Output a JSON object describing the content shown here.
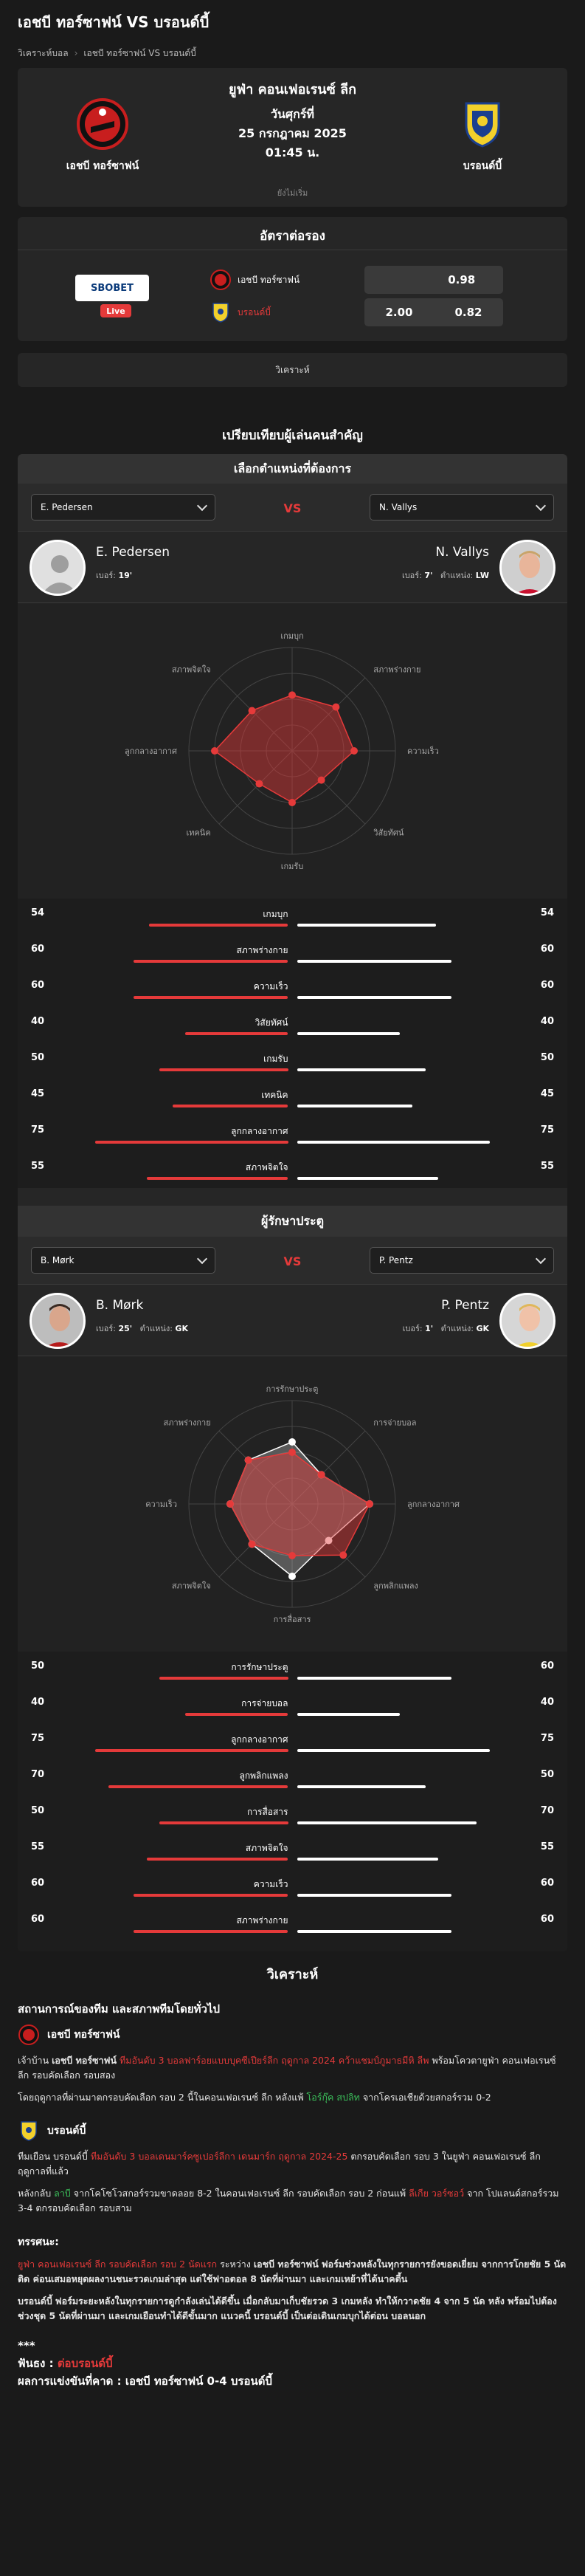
{
  "page": {
    "title": "เอชบี ทอร์ซาฟน์ VS บรอนด์บี้",
    "breadcrumb": [
      "วิเคราะห์บอล",
      "เอชบี ทอร์ซาฟน์ VS บรอนด์บี้"
    ]
  },
  "match": {
    "league": "ยูฟ่า คอนเฟอเรนซ์ ลีก",
    "day": "วันศุกร์ที่",
    "date": "25 กรกฎาคม 2025",
    "time": "01:45 น.",
    "status": "ยังไม่เริ่ม",
    "home": "เอชบี ทอร์ซาฟน์",
    "away": "บรอนด์บี้"
  },
  "odds": {
    "title": "อัตราต่อรอง",
    "bookmaker": "SBOBET",
    "live": "Live",
    "rows": [
      {
        "team": "เอชบี ทอร์ซาฟน์",
        "hdp": "",
        "price": "0.98",
        "team_color": "#ffffff"
      },
      {
        "team": "บรอนด์บี้",
        "hdp": "2.00",
        "price": "0.82",
        "team_color": "#e53a3a"
      }
    ]
  },
  "tab": {
    "label": "วิเคราะห์"
  },
  "compare": {
    "section_title": "เปรียบเทียบผู้เล่นคนสำคัญ",
    "head": "เลือกตำแหน่งที่ต้องการ",
    "vs": "VS",
    "left": {
      "name": "E. Pedersen",
      "age_label": "เบอร์:",
      "age": "19",
      "pos_label": "",
      "pos": ""
    },
    "right": {
      "name": "N. Vallys",
      "age_label": "เบอร์:",
      "age": "7",
      "pos_label": "ตำแหน่ง:",
      "pos": "LW"
    },
    "stats": [
      {
        "label": "เกมบุก",
        "l": 54,
        "r": 54
      },
      {
        "label": "สภาพร่างกาย",
        "l": 60,
        "r": 60
      },
      {
        "label": "ความเร็ว",
        "l": 60,
        "r": 60
      },
      {
        "label": "วิสัยทัศน์",
        "l": 40,
        "r": 40
      },
      {
        "label": "เกมรับ",
        "l": 50,
        "r": 50
      },
      {
        "label": "เทคนิค",
        "l": 45,
        "r": 45
      },
      {
        "label": "ลูกกลางอากาศ",
        "l": 75,
        "r": 75
      },
      {
        "label": "สภาพจิตใจ",
        "l": 55,
        "r": 55
      }
    ],
    "radar_axes": [
      "เกมบุก",
      "สภาพร่างกาย",
      "ความเร็ว",
      "วิสัยทัศน์",
      "เกมรับ",
      "เทคนิค",
      "ลูกกลางอากาศ",
      "สภาพจิตใจ"
    ]
  },
  "gk": {
    "title": "ผู้รักษาประตู",
    "vs": "VS",
    "left": {
      "name": "B. Mørk",
      "num_label": "เบอร์:",
      "num": "25",
      "pos_label": "ตำแหน่ง:",
      "pos": "GK"
    },
    "right": {
      "name": "P. Pentz",
      "num_label": "เบอร์:",
      "num": "1",
      "pos_label": "ตำแหน่ง:",
      "pos": "GK"
    },
    "stats": [
      {
        "label": "การรักษาประตู",
        "l": 50,
        "r": 60
      },
      {
        "label": "การจ่ายบอล",
        "l": 40,
        "r": 40
      },
      {
        "label": "ลูกกลางอากาศ",
        "l": 75,
        "r": 75
      },
      {
        "label": "ลูกพลิกแพลง",
        "l": 70,
        "r": 50
      },
      {
        "label": "การสื่อสาร",
        "l": 50,
        "r": 70
      },
      {
        "label": "สภาพจิตใจ",
        "l": 55,
        "r": 55
      },
      {
        "label": "ความเร็ว",
        "l": 60,
        "r": 60
      },
      {
        "label": "สภาพร่างกาย",
        "l": 60,
        "r": 60
      }
    ],
    "radar_axes": [
      "การรักษาประตู",
      "การจ่ายบอล",
      "ลูกกลางอากาศ",
      "ลูกพลิกแพลง",
      "การสื่อสาร",
      "สภาพจิตใจ",
      "ความเร็ว",
      "สภาพร่างกาย"
    ]
  },
  "analysis": {
    "header": "วิเคราะห์",
    "h3": "สถานการณ์ของทีม และสภาพทีมโดยทั่วไป",
    "home_team": "เอชบี ทอร์ซาฟน์",
    "home_p1_a": "เจ้าบ้าน",
    "home_p1_b": "เอชบี ทอร์ซาฟน์",
    "home_p1_c": "ทีมอันดับ 3 บอลฟาร์อยแบบบุคซีเปียร์ลีก ฤดูกาล 2024 คว้าแชมป์ภูมาธมีหิ ลีพ",
    "home_p1_d": "พร้อมโควตายูฟ่า คอนเฟอเรนซ์ ลีก รอบคัดเลือก รอบสอง",
    "home_p2": "โดยฤดูกาลที่ผ่านมาตกรอบคัดเลือก รอบ 2 นี้ในคอนเฟอเรนซ์ ลีก หลังแพ้",
    "home_p2_g": "โอร์กุ๊ค สปลิท",
    "home_p2_e": "จากโครเอเชียด้วยสกอร์รวม 0-2",
    "away_team": "บรอนด์บี้",
    "away_p1_a": "ทีมเยือน บรอนด์บี้",
    "away_p1_b": "ทีมอันดับ 3 บอลเดนมาร์คซูเปอร์ลีกา เดนมาร์ก ฤดูกาล 2024-25",
    "away_p1_c": "ตกรอบคัดเลือก รอบ 3 ในยูฟ่า คอนเฟอเรนซ์ ลีก ฤดูกาลที่แล้ว",
    "away_p2_a": "หลังกลับ",
    "away_p2_g": "ลาบี",
    "away_p2_b": "จากโคโซโวสกอร์รวมขาดลอย 8-2 ในคอนเฟอเรนซ์ ลีก รอบคัดเลือก รอบ 2 ก่อนแพ้",
    "away_p2_r": "ลีเกีย วอร์ซอว์",
    "away_p2_c": "จาก",
    "away_p2_d": "โปแลนด์สกอร์รวม 3-4 ตกรอบคัดเลือก รอบสาม",
    "trend_h": "ทรรศนะ:",
    "trend_p1_r": "ยูฟ่า คอนเฟอเรนซ์ ลีก รอบคัดเลือก รอบ 2 นัดแรก",
    "trend_p1_a": "ระหว่าง",
    "trend_p1_b": "เอชบี ทอร์ซาฟน์",
    "trend_p1_c": "ฟอร์มช่วงหลังในทุกรายการยังขอดเยี่ยม จากการโกยชัย 5 นัดติด ค่อนเสมอหยุดผลงานชนะรวดเกมล่าสุด แต่ใช้ฟาอตอล 8 นัดที่ผ่านมา และเกมเหย้าที่ได้นาคตี้น",
    "trend_p2_a": "บรอนด์บี้",
    "trend_p2_b": "ฟอร์มระยะหลังในทุกรายการดูกำลังเล่นได้ดีขึ้น เมื่อกลับมาเก็บชัยรวด 3 เกมหลัง ทำให้กวาดชัย 4 จาก 5 นัด หลัง พร้อมไปต้องช่วงชุด 5 นัดที่ผ่านมา และเกมเยือนทำได้ดีขั้นมาก แนวคนี้",
    "trend_p2_c": "บรอนด์บี้",
    "trend_p2_d": "เป็นต่อเดินเกมบุกได้ต่อน บอลนอก",
    "stars": "***",
    "pick_label": "ฟันธง :",
    "pick_value": "ต่อบรอนด์บี้",
    "score_label": "ผลการแข่งขันที่คาด :",
    "score_value": "เอชบี ทอร์ซาฟน์ 0-4 บรอนด์บี้"
  },
  "colors": {
    "accent": "#e53a3a",
    "panel": "#262626",
    "bg": "#1a1a1a",
    "green": "#3bbf5a"
  }
}
